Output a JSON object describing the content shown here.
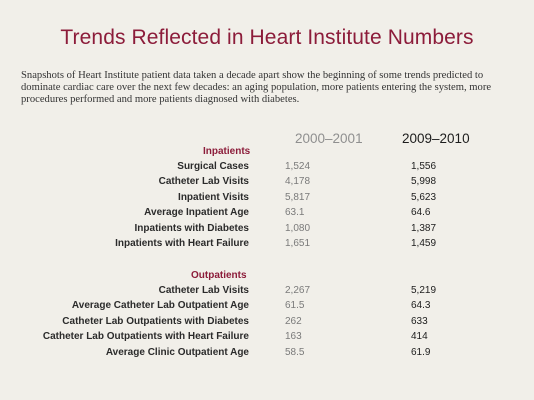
{
  "title": "Trends Reflected in Heart Institute Numbers",
  "intro": "Snapshots of Heart Institute patient data taken a decade apart show the beginning of some trends predicted to dominate cardiac care over the next few decades: an aging population, more patients entering the system, more procedures performed and more patients diagnosed with diabetes.",
  "columns": [
    "2000–2001",
    "2009–2010"
  ],
  "sections": [
    {
      "name": "Inpatients",
      "rows": [
        {
          "label": "Surgical Cases",
          "a": "1,524",
          "b": "1,556"
        },
        {
          "label": "Catheter Lab Visits",
          "a": "4,178",
          "b": "5,998"
        },
        {
          "label": "Inpatient Visits",
          "a": "5,817",
          "b": "5,623"
        },
        {
          "label": "Average Inpatient Age",
          "a": "63.1",
          "b": "64.6"
        },
        {
          "label": "Inpatients with Diabetes",
          "a": "1,080",
          "b": "1,387"
        },
        {
          "label": "Inpatients with Heart Failure",
          "a": "1,651",
          "b": "1,459"
        }
      ]
    },
    {
      "name": "Outpatients",
      "rows": [
        {
          "label": "Catheter Lab Visits",
          "a": "2,267",
          "b": "5,219"
        },
        {
          "label": "Average Catheter Lab Outpatient Age",
          "a": "61.5",
          "b": "64.3"
        },
        {
          "label": "Catheter Lab Outpatients with Diabetes",
          "a": "262",
          "b": "633"
        },
        {
          "label": "Catheter Lab Outpatients with Heart Failure",
          "a": "163",
          "b": "414"
        },
        {
          "label": "Average Clinic Outpatient Age",
          "a": "58.5",
          "b": "61.9"
        }
      ]
    }
  ]
}
